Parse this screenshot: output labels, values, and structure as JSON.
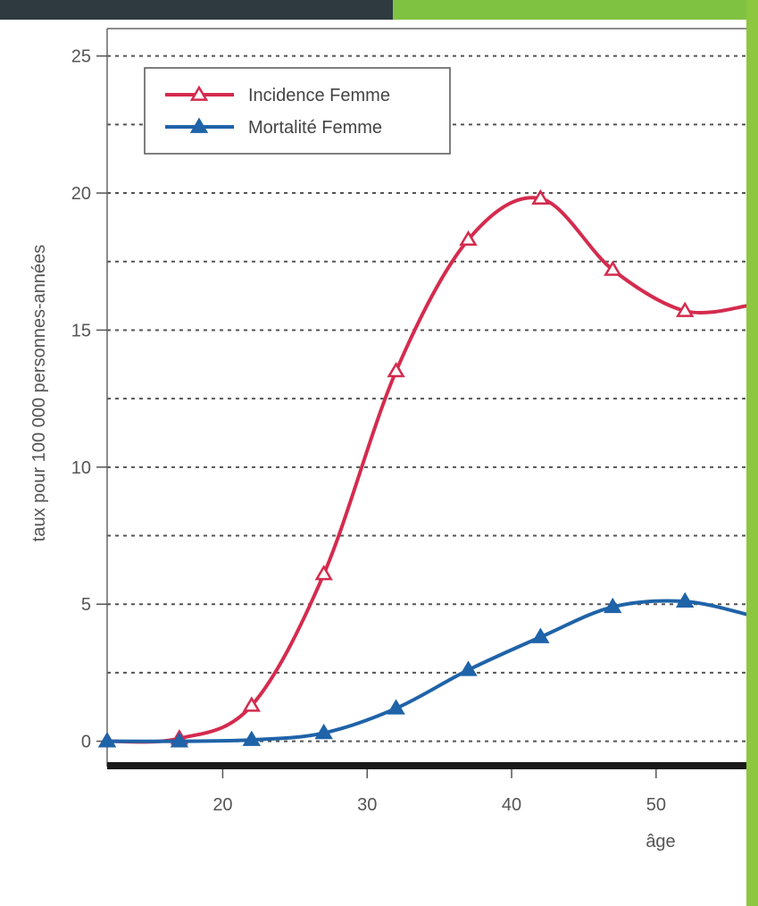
{
  "chart_data": {
    "type": "line",
    "xlabel": "âge",
    "ylabel": "taux pour 100 000 personnes-années",
    "xlim": [
      12,
      56.5
    ],
    "ylim": [
      -0.6,
      26
    ],
    "xticks": [
      20,
      30,
      40,
      50
    ],
    "yticks": [
      0,
      5,
      10,
      15,
      20,
      25
    ],
    "ygrid_minor": [
      2.5,
      7.5,
      12.5,
      17.5,
      22.5
    ],
    "grid": "horizontal-dashed",
    "legend_position": "top-left",
    "series": [
      {
        "name": "Incidence Femme",
        "color": "#d42b4e",
        "marker": "triangle-open",
        "points": [
          [
            12,
            0
          ],
          [
            17,
            0.1
          ],
          [
            22,
            1.3
          ],
          [
            27,
            6.1
          ],
          [
            32,
            13.5
          ],
          [
            37,
            18.3
          ],
          [
            42,
            19.8
          ],
          [
            47,
            17.2
          ],
          [
            52,
            15.7
          ],
          [
            56.5,
            15.9
          ]
        ]
      },
      {
        "name": "Mortalité Femme",
        "color": "#1f63a8",
        "marker": "triangle-filled",
        "points": [
          [
            12,
            0
          ],
          [
            17,
            0
          ],
          [
            22,
            0.05
          ],
          [
            27,
            0.3
          ],
          [
            32,
            1.2
          ],
          [
            37,
            2.6
          ],
          [
            42,
            3.8
          ],
          [
            47,
            4.9
          ],
          [
            52,
            5.1
          ],
          [
            56.5,
            4.6
          ]
        ]
      }
    ]
  }
}
